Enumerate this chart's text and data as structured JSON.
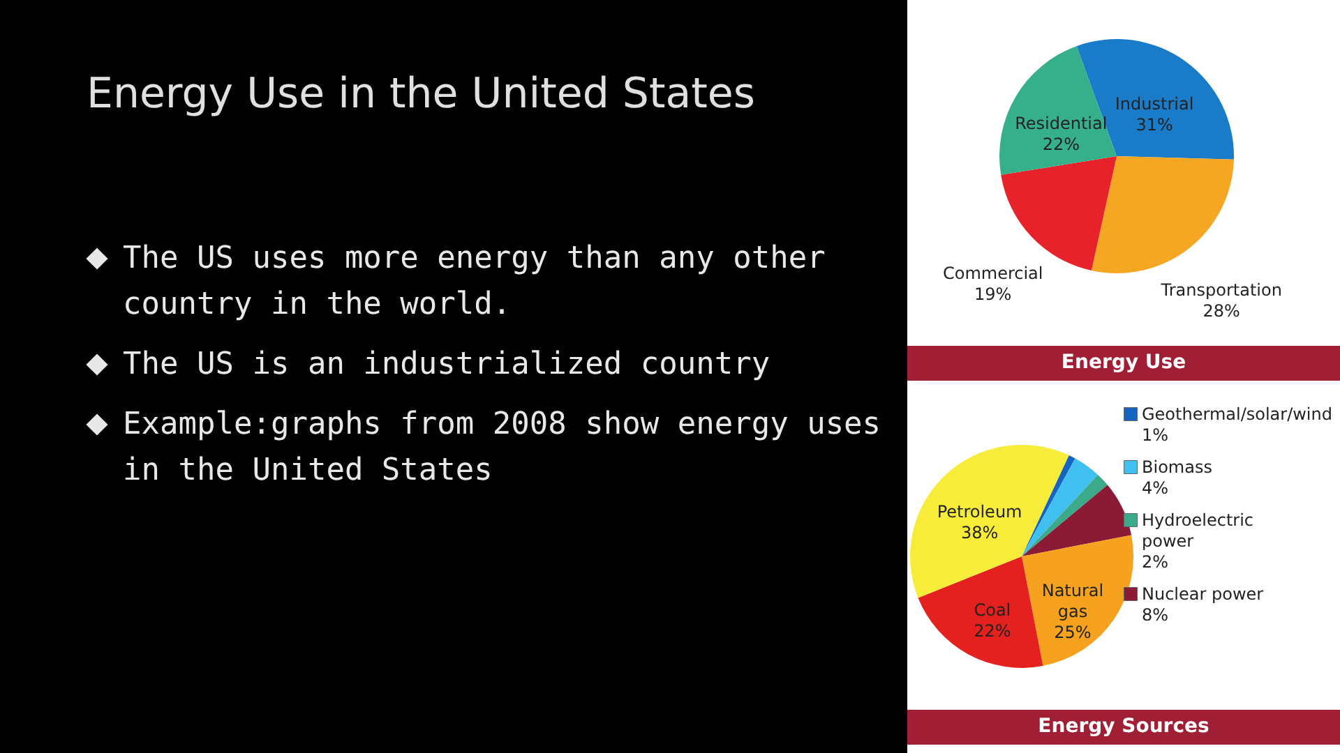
{
  "chart_data": [
    {
      "type": "other",
      "title": "Energy Use in the United States",
      "annotations": [
        "The US uses more energy than any other country in the world.",
        "The US is an industrialized country",
        "Example:graphs from 2008 show energy uses in the United States"
      ]
    },
    {
      "type": "pie",
      "title": "Energy Use",
      "categories": [
        "Industrial",
        "Transportation",
        "Commercial",
        "Residential"
      ],
      "values": [
        31,
        28,
        19,
        22
      ],
      "value_labels": [
        "31%",
        "28%",
        "19%",
        "22%"
      ],
      "colors": [
        "#1a7cc9",
        "#f5a623",
        "#e8222b",
        "#35b08a"
      ]
    },
    {
      "type": "pie",
      "title": "Energy Sources",
      "categories": [
        "Geothermal/solar/wind",
        "Biomass",
        "Hydroelectric power",
        "Nuclear power",
        "Natural gas",
        "Coal",
        "Petroleum"
      ],
      "values": [
        1,
        4,
        2,
        8,
        25,
        22,
        38
      ],
      "value_labels": [
        "1%",
        "4%",
        "2%",
        "8%",
        "25%",
        "22%",
        "38%"
      ],
      "colors": [
        "#1565c0",
        "#40c0f0",
        "#3aaa8a",
        "#8b1a35",
        "#f6a21e",
        "#e4211f",
        "#f7ec3a"
      ],
      "legend": "right"
    }
  ]
}
